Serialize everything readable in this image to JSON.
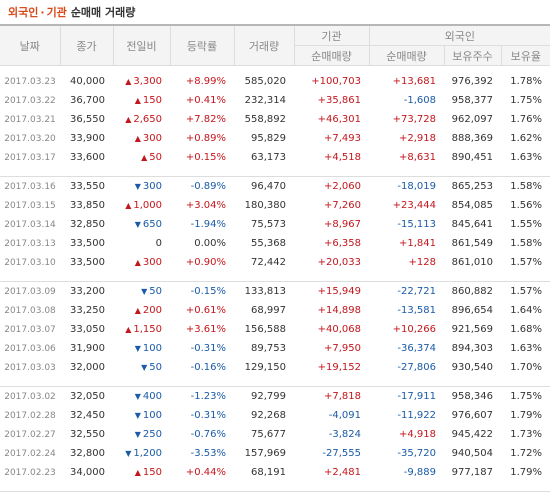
{
  "title": {
    "part1": "외국인",
    "sep": "·",
    "part2": "기관",
    "rest": "순매매 거래량"
  },
  "headers": {
    "date": "날짜",
    "close": "종가",
    "change": "전일비",
    "rate": "등락률",
    "volume": "거래량",
    "institution": "기관",
    "foreign": "외국인",
    "inst_net": "순매매량",
    "foreign_net": "순매매량",
    "holdings": "보유주수",
    "hold_ratio": "보유율"
  },
  "groups": [
    [
      {
        "date": "2017.03.23",
        "close": "40,000",
        "dir": "up",
        "change": "3,300",
        "rate": "+8.99%",
        "volume": "585,020",
        "inst": "+100,703",
        "foreign": "+13,681",
        "holdings": "976,392",
        "ratio": "1.78%"
      },
      {
        "date": "2017.03.22",
        "close": "36,700",
        "dir": "up",
        "change": "150",
        "rate": "+0.41%",
        "volume": "232,314",
        "inst": "+35,861",
        "foreign": "-1,608",
        "holdings": "958,377",
        "ratio": "1.75%"
      },
      {
        "date": "2017.03.21",
        "close": "36,550",
        "dir": "up",
        "change": "2,650",
        "rate": "+7.82%",
        "volume": "558,892",
        "inst": "+46,301",
        "foreign": "+73,728",
        "holdings": "962,097",
        "ratio": "1.76%"
      },
      {
        "date": "2017.03.20",
        "close": "33,900",
        "dir": "up",
        "change": "300",
        "rate": "+0.89%",
        "volume": "95,829",
        "inst": "+7,493",
        "foreign": "+2,918",
        "holdings": "888,369",
        "ratio": "1.62%"
      },
      {
        "date": "2017.03.17",
        "close": "33,600",
        "dir": "up",
        "change": "50",
        "rate": "+0.15%",
        "volume": "63,173",
        "inst": "+4,518",
        "foreign": "+8,631",
        "holdings": "890,451",
        "ratio": "1.63%"
      }
    ],
    [
      {
        "date": "2017.03.16",
        "close": "33,550",
        "dir": "down",
        "change": "300",
        "rate": "-0.89%",
        "volume": "96,470",
        "inst": "+2,060",
        "foreign": "-18,019",
        "holdings": "865,253",
        "ratio": "1.58%"
      },
      {
        "date": "2017.03.15",
        "close": "33,850",
        "dir": "up",
        "change": "1,000",
        "rate": "+3.04%",
        "volume": "180,380",
        "inst": "+7,260",
        "foreign": "+23,444",
        "holdings": "854,085",
        "ratio": "1.56%"
      },
      {
        "date": "2017.03.14",
        "close": "32,850",
        "dir": "down",
        "change": "650",
        "rate": "-1.94%",
        "volume": "75,573",
        "inst": "+8,967",
        "foreign": "-15,113",
        "holdings": "845,641",
        "ratio": "1.55%"
      },
      {
        "date": "2017.03.13",
        "close": "33,500",
        "dir": "flat",
        "change": "0",
        "rate": "0.00%",
        "volume": "55,368",
        "inst": "+6,358",
        "foreign": "+1,841",
        "holdings": "861,549",
        "ratio": "1.58%"
      },
      {
        "date": "2017.03.10",
        "close": "33,500",
        "dir": "up",
        "change": "300",
        "rate": "+0.90%",
        "volume": "72,442",
        "inst": "+20,033",
        "foreign": "+128",
        "holdings": "861,010",
        "ratio": "1.57%"
      }
    ],
    [
      {
        "date": "2017.03.09",
        "close": "33,200",
        "dir": "down",
        "change": "50",
        "rate": "-0.15%",
        "volume": "133,813",
        "inst": "+15,949",
        "foreign": "-22,721",
        "holdings": "860,882",
        "ratio": "1.57%"
      },
      {
        "date": "2017.03.08",
        "close": "33,250",
        "dir": "up",
        "change": "200",
        "rate": "+0.61%",
        "volume": "68,997",
        "inst": "+14,898",
        "foreign": "-13,581",
        "holdings": "896,654",
        "ratio": "1.64%"
      },
      {
        "date": "2017.03.07",
        "close": "33,050",
        "dir": "up",
        "change": "1,150",
        "rate": "+3.61%",
        "volume": "156,588",
        "inst": "+40,068",
        "foreign": "+10,266",
        "holdings": "921,569",
        "ratio": "1.68%"
      },
      {
        "date": "2017.03.06",
        "close": "31,900",
        "dir": "down",
        "change": "100",
        "rate": "-0.31%",
        "volume": "89,753",
        "inst": "+7,950",
        "foreign": "-36,374",
        "holdings": "894,303",
        "ratio": "1.63%"
      },
      {
        "date": "2017.03.03",
        "close": "32,000",
        "dir": "down",
        "change": "50",
        "rate": "-0.16%",
        "volume": "129,150",
        "inst": "+19,152",
        "foreign": "-27,806",
        "holdings": "930,540",
        "ratio": "1.70%"
      }
    ],
    [
      {
        "date": "2017.03.02",
        "close": "32,050",
        "dir": "down",
        "change": "400",
        "rate": "-1.23%",
        "volume": "92,799",
        "inst": "+7,818",
        "foreign": "-17,911",
        "holdings": "958,346",
        "ratio": "1.75%"
      },
      {
        "date": "2017.02.28",
        "close": "32,450",
        "dir": "down",
        "change": "100",
        "rate": "-0.31%",
        "volume": "92,268",
        "inst": "-4,091",
        "foreign": "-11,922",
        "holdings": "976,607",
        "ratio": "1.79%"
      },
      {
        "date": "2017.02.27",
        "close": "32,550",
        "dir": "down",
        "change": "250",
        "rate": "-0.76%",
        "volume": "75,677",
        "inst": "-3,824",
        "foreign": "+4,918",
        "holdings": "945,422",
        "ratio": "1.73%"
      },
      {
        "date": "2017.02.24",
        "close": "32,800",
        "dir": "down",
        "change": "1,200",
        "rate": "-3.53%",
        "volume": "157,969",
        "inst": "-27,555",
        "foreign": "-35,720",
        "holdings": "940,504",
        "ratio": "1.72%"
      },
      {
        "date": "2017.02.23",
        "close": "34,000",
        "dir": "up",
        "change": "150",
        "rate": "+0.44%",
        "volume": "68,191",
        "inst": "+2,481",
        "foreign": "-9,889",
        "holdings": "977,187",
        "ratio": "1.79%"
      }
    ]
  ],
  "colors": {
    "up": "#c4161c",
    "down": "#1a5ba8",
    "title_accent": "#d94a1b"
  },
  "icons": {
    "up": "triangle-up-icon",
    "down": "triangle-down-icon"
  }
}
